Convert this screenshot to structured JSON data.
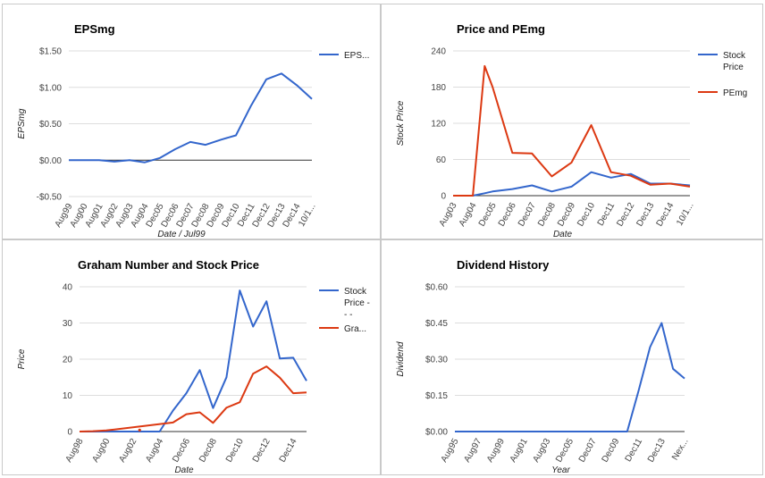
{
  "chart_data": [
    {
      "type": "line",
      "title": "EPSmg",
      "xlabel": "Date / Jul99",
      "ylabel": "EPSmg",
      "ylim": [
        -0.5,
        1.5
      ],
      "yticks": [
        -0.5,
        0,
        0.5,
        1,
        1.5
      ],
      "ytick_labels": [
        "-$0.50",
        "$0.00",
        "$0.50",
        "$1.00",
        "$1.50"
      ],
      "categories": [
        "Aug99",
        "Aug00",
        "Aug01",
        "Aug02",
        "Aug03",
        "Aug04",
        "Dec05",
        "Dec06",
        "Dec07",
        "Dec08",
        "Dec09",
        "Dec10",
        "Dec11",
        "Dec12",
        "Dec13",
        "Dec14",
        "10/1..."
      ],
      "series": [
        {
          "name": "EPS...",
          "color": "#3366cc",
          "values": [
            0.0,
            0.0,
            0.0,
            -0.02,
            0.0,
            -0.03,
            0.03,
            0.15,
            0.25,
            0.21,
            0.28,
            0.34,
            0.75,
            1.11,
            1.19,
            1.03,
            0.84
          ]
        }
      ],
      "legend": "right"
    },
    {
      "type": "line",
      "title": "Price and PEmg",
      "xlabel": "Date",
      "ylabel": "Stock Price",
      "ylim": [
        0,
        240
      ],
      "yticks": [
        0,
        60,
        120,
        180,
        240
      ],
      "ytick_labels": [
        "0",
        "60",
        "120",
        "180",
        "240"
      ],
      "categories": [
        "Aug03",
        "Aug04",
        "Dec05",
        "Dec06",
        "Dec07",
        "Dec08",
        "Dec09",
        "Dec10",
        "Dec11",
        "Dec12",
        "Dec13",
        "Dec14",
        "10/1..."
      ],
      "series": [
        {
          "name": "Stock Price",
          "color": "#3366cc",
          "x": [
            0,
            1,
            1.6,
            2,
            3,
            4,
            5,
            6,
            7,
            8,
            9,
            10,
            11,
            12
          ],
          "values": [
            0,
            0,
            4,
            7,
            11,
            17,
            7,
            15,
            39,
            30,
            36,
            20,
            20,
            17
          ]
        },
        {
          "name": "PEmg",
          "color": "#dc3912",
          "x": [
            0,
            1,
            1.6,
            2,
            3,
            4,
            5,
            6,
            7,
            8,
            9,
            10,
            11,
            12
          ],
          "values": [
            0,
            0,
            215,
            180,
            71,
            70,
            32,
            55,
            117,
            39,
            33,
            18,
            20,
            15
          ]
        }
      ],
      "legend": "right"
    },
    {
      "type": "line",
      "title": "Graham Number and Stock Price",
      "xlabel": "Date",
      "ylabel": "Price",
      "ylim": [
        0,
        40
      ],
      "yticks": [
        0,
        10,
        20,
        30,
        40
      ],
      "ytick_labels": [
        "0",
        "10",
        "20",
        "30",
        "40"
      ],
      "categories": [
        "Aug98",
        "Aug00",
        "Aug02",
        "Aug04",
        "Dec06",
        "Dec08",
        "Dec10",
        "Dec12",
        "Dec14"
      ],
      "series": [
        {
          "name": "Stock Price - - -",
          "color": "#3366cc",
          "x": [
            0,
            1,
            2,
            3,
            4,
            5,
            6,
            7,
            8,
            9,
            10,
            11,
            12,
            13,
            14,
            15,
            16,
            17
          ],
          "values": [
            0,
            0,
            0,
            0,
            0,
            0,
            0,
            5.8,
            10.6,
            17,
            6.5,
            15,
            39,
            29,
            36,
            20.2,
            20.4,
            14
          ]
        },
        {
          "name": "Gra...",
          "color": "#dc3912",
          "x": [
            0,
            1,
            2,
            7,
            8,
            9,
            10,
            11,
            12,
            13,
            14,
            15,
            16,
            17
          ],
          "values": [
            0,
            0.1,
            0.3,
            2.5,
            4.8,
            5.3,
            2.4,
            6.6,
            8.1,
            16,
            18,
            14.9,
            10.6,
            10.8
          ]
        }
      ],
      "legend": "right"
    },
    {
      "type": "line",
      "title": "Dividend History",
      "xlabel": "Year",
      "ylabel": "Dividend",
      "ylim": [
        0,
        0.6
      ],
      "yticks": [
        0,
        0.15,
        0.3,
        0.45,
        0.6
      ],
      "ytick_labels": [
        "$0.00",
        "$0.15",
        "$0.30",
        "$0.45",
        "$0.60"
      ],
      "categories": [
        "Aug95",
        "Aug97",
        "Aug99",
        "Aug01",
        "Aug03",
        "Dec05",
        "Dec07",
        "Dec09",
        "Dec11",
        "Dec13",
        "Nex..."
      ],
      "series": [
        {
          "name": "Dividend",
          "color": "#3366cc",
          "x": [
            0,
            1,
            2,
            3,
            4,
            5,
            6,
            7,
            8,
            9,
            10,
            11,
            12,
            13,
            14,
            15,
            16,
            17,
            18,
            19,
            20
          ],
          "values": [
            0,
            0,
            0,
            0,
            0,
            0,
            0,
            0,
            0,
            0,
            0,
            0,
            0,
            0,
            0,
            0,
            0.17,
            0.35,
            0.45,
            0.26,
            0.22
          ]
        }
      ]
    }
  ]
}
